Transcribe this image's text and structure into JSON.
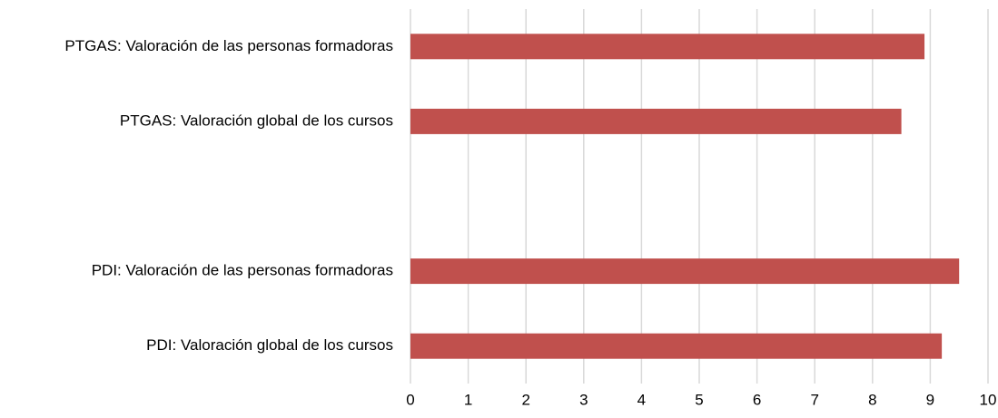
{
  "chart_data": {
    "type": "barh",
    "categories": [
      "PTGAS: Valoración de las personas formadoras",
      "PTGAS: Valoración global de los cursos",
      null,
      "PDI: Valoración de las personas formadoras",
      "PDI: Valoración global de los cursos"
    ],
    "values": [
      8.9,
      8.5,
      null,
      9.5,
      9.2
    ],
    "color": "#c0504d",
    "xlim": [
      0,
      10
    ],
    "xticks": [
      0,
      1,
      2,
      3,
      4,
      5,
      6,
      7,
      8,
      9,
      10
    ],
    "grid": true
  }
}
